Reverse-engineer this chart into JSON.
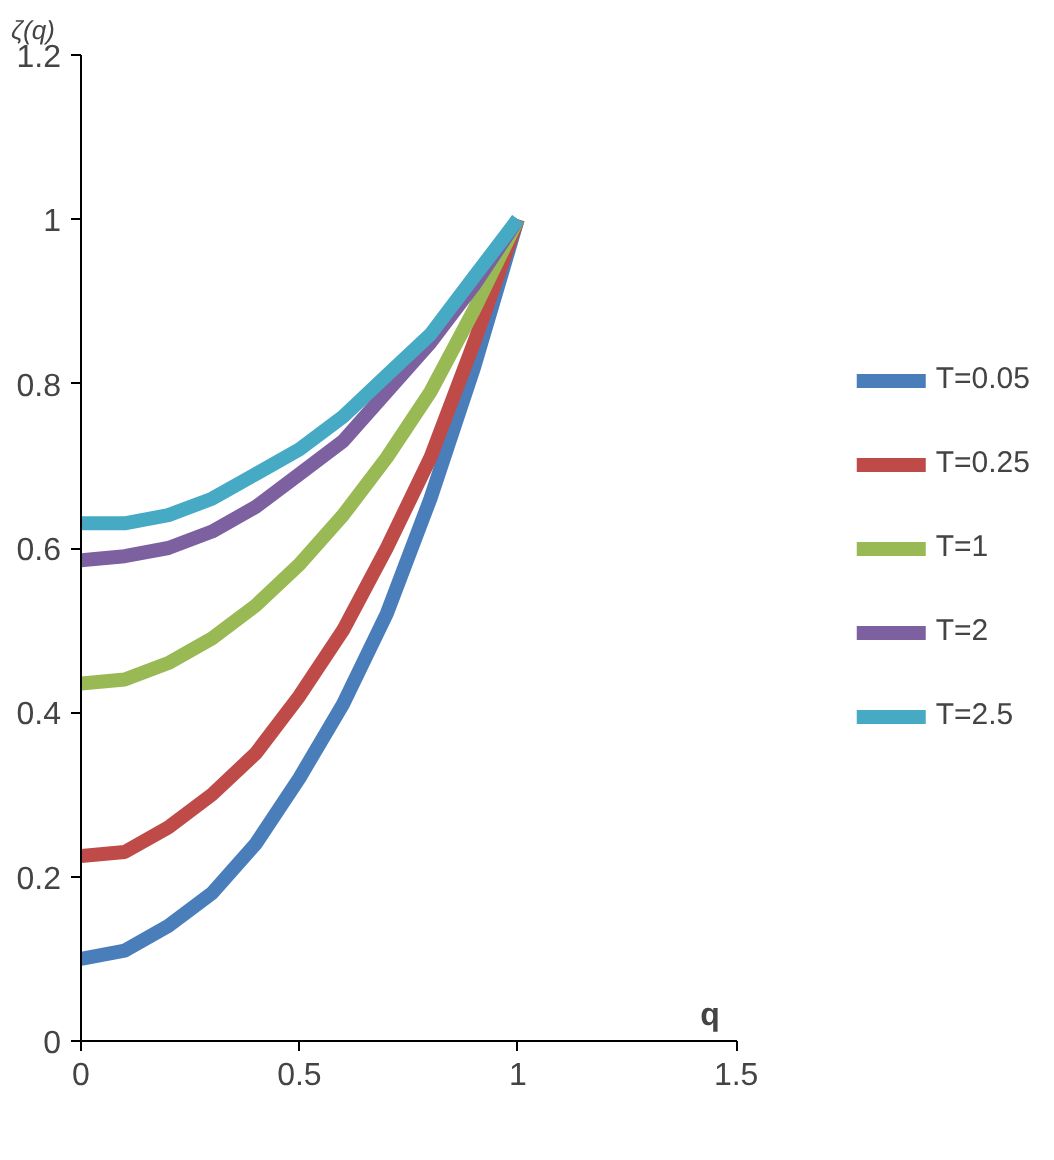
{
  "chart_data": {
    "type": "line",
    "xlabel": "q",
    "ylabel": "ζ(q)",
    "x": [
      0,
      0.1,
      0.2,
      0.3,
      0.4,
      0.5,
      0.6,
      0.7,
      0.8,
      0.9,
      1.0
    ],
    "series": [
      {
        "name": "T=0.05",
        "color": "#4a7ebb",
        "values": [
          0.1,
          0.11,
          0.14,
          0.18,
          0.24,
          0.32,
          0.41,
          0.52,
          0.66,
          0.82,
          1.0
        ]
      },
      {
        "name": "T=0.25",
        "color": "#be4b48",
        "values": [
          0.225,
          0.23,
          0.26,
          0.3,
          0.35,
          0.42,
          0.5,
          0.6,
          0.71,
          0.85,
          1.0
        ]
      },
      {
        "name": "T=1",
        "color": "#98b954",
        "values": [
          0.435,
          0.44,
          0.46,
          0.49,
          0.53,
          0.58,
          0.64,
          0.71,
          0.79,
          0.89,
          1.0
        ]
      },
      {
        "name": "T=2",
        "color": "#7d60a0",
        "values": [
          0.585,
          0.59,
          0.6,
          0.62,
          0.65,
          0.69,
          0.73,
          0.79,
          0.85,
          0.92,
          1.0
        ]
      },
      {
        "name": "T=2.5",
        "color": "#46aac5",
        "values": [
          0.63,
          0.63,
          0.64,
          0.66,
          0.69,
          0.72,
          0.76,
          0.81,
          0.86,
          0.93,
          1.0
        ]
      }
    ],
    "xlim": [
      0,
      1.5
    ],
    "ylim": [
      0,
      1.2
    ],
    "xticks": [
      0,
      0.5,
      1,
      1.5
    ],
    "yticks": [
      0,
      0.2,
      0.4,
      0.6,
      0.8,
      1,
      1.2
    ],
    "grid": false,
    "legend": "right",
    "marker": "none",
    "line_style": "solid"
  }
}
